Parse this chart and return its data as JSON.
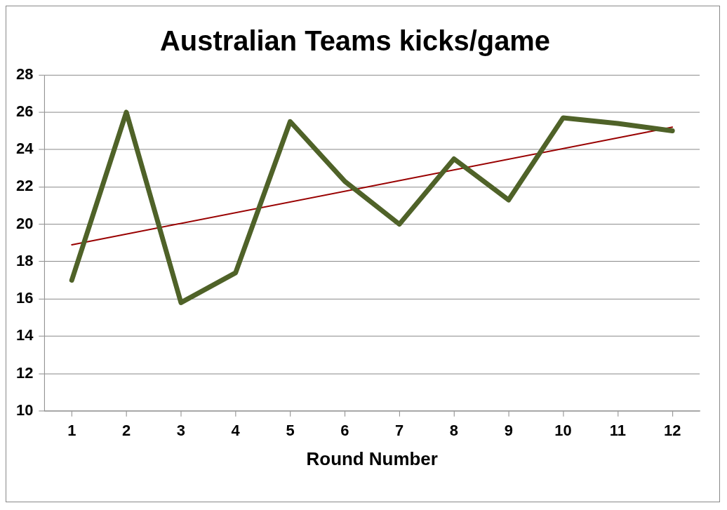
{
  "chart_data": {
    "type": "line",
    "title": "Australian Teams kicks/game",
    "xlabel": "Round Number",
    "x": [
      1,
      2,
      3,
      4,
      5,
      6,
      7,
      8,
      9,
      10,
      11,
      12
    ],
    "series": [
      {
        "color": "#4f6228",
        "values": [
          17,
          26,
          15.8,
          17.4,
          25.5,
          22.3,
          20,
          23.5,
          21.3,
          25.7,
          25.4,
          25
        ]
      },
      {
        "type": "line",
        "color": "#990000",
        "x": [
          1,
          12
        ],
        "values": [
          18.9,
          25.2
        ]
      }
    ],
    "xlim": [
      0.5,
      12.5
    ],
    "xticks": [
      1,
      2,
      3,
      4,
      5,
      6,
      7,
      8,
      9,
      10,
      11,
      12
    ],
    "ylim": [
      10,
      28
    ],
    "yticks": [
      10,
      12,
      14,
      16,
      18,
      20,
      22,
      24,
      26,
      28
    ],
    "grid": "y",
    "legend": false,
    "marker": "none",
    "line_style": "solid"
  }
}
